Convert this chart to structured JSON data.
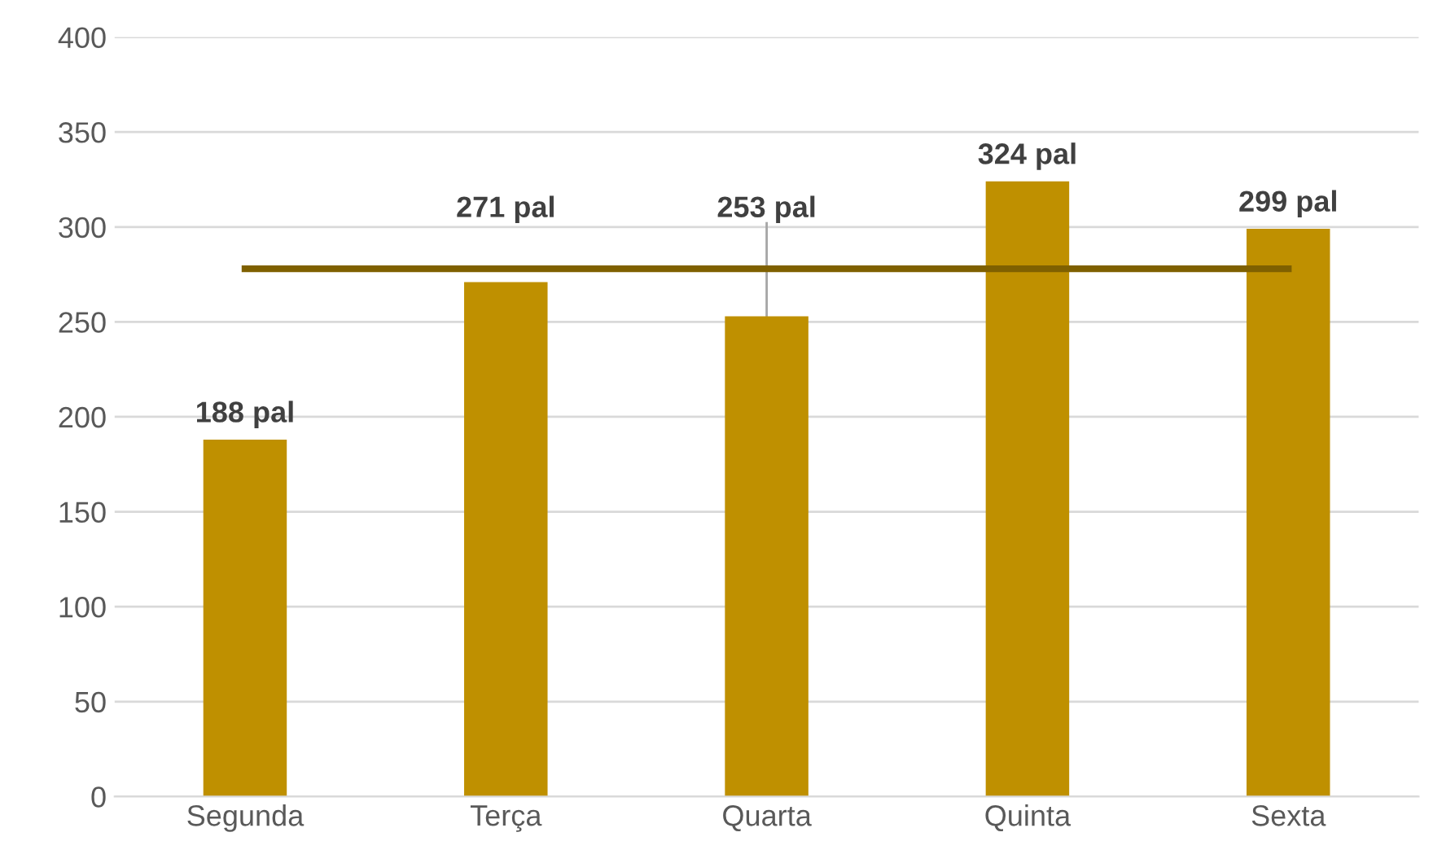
{
  "chart_data": {
    "type": "bar",
    "categories": [
      "Segunda",
      "Terça",
      "Quarta",
      "Quinta",
      "Sexta"
    ],
    "series": [
      {
        "color": "#bf9000",
        "values": [
          188,
          271,
          253,
          324,
          299
        ],
        "value_labels": [
          "188 pal",
          "271 pal",
          "253 pal",
          "324 pal",
          "299 pal"
        ]
      },
      {
        "type": "line",
        "color": "#7f6000",
        "values": [
          278,
          278,
          278,
          278,
          278
        ],
        "marker": "none",
        "line_style": "solid"
      }
    ],
    "ylim": [
      0,
      400
    ],
    "yticks": [
      0,
      50,
      100,
      150,
      200,
      250,
      300,
      350,
      400
    ],
    "grid": "y",
    "legend": false
  }
}
